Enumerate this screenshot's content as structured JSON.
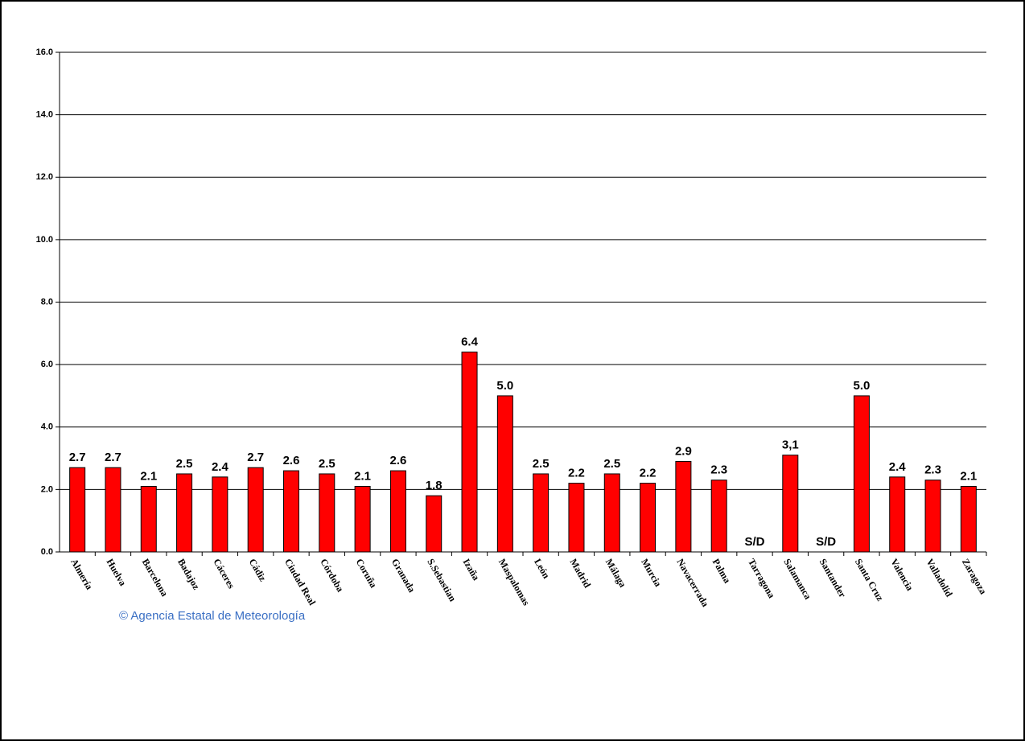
{
  "chart_data": {
    "type": "bar",
    "categories": [
      "Almería",
      "Huelva",
      "Barcelona",
      "Badajoz",
      "Cáceres",
      "Cádiz",
      "Ciudad Real",
      "Córdoba",
      "Coruña",
      "Granada",
      "S.Sebastian",
      "Izaña",
      "Maspalomas",
      "León",
      "Madrid",
      "Málaga",
      "Murcia",
      "Navacerrada",
      "Palma",
      "Tarragona",
      "Salamanca",
      "Santander",
      "Santa Cruz",
      "Valencia",
      "Valladolid",
      "Zaragoza"
    ],
    "values": [
      2.7,
      2.7,
      2.1,
      2.5,
      2.4,
      2.7,
      2.6,
      2.5,
      2.1,
      2.6,
      1.8,
      6.4,
      5.0,
      2.5,
      2.2,
      2.5,
      2.2,
      2.9,
      2.3,
      null,
      3.1,
      null,
      5.0,
      2.4,
      2.3,
      2.1
    ],
    "value_labels": [
      "2.7",
      "2.7",
      "2.1",
      "2.5",
      "2.4",
      "2.7",
      "2.6",
      "2.5",
      "2.1",
      "2.6",
      "1.8",
      "6.4",
      "5.0",
      "2.5",
      "2.2",
      "2.5",
      "2.2",
      "2.9",
      "2.3",
      "S/D",
      "3,1",
      "S/D",
      "5.0",
      "2.4",
      "2.3",
      "2.1"
    ],
    "color": "#ff0000",
    "ylim": [
      0,
      16
    ],
    "yticks": [
      {
        "value": 0,
        "label": "0.0"
      },
      {
        "value": 2,
        "label": "2.0"
      },
      {
        "value": 4,
        "label": "4.0"
      },
      {
        "value": 6,
        "label": "6.0"
      },
      {
        "value": 8,
        "label": "8.0"
      },
      {
        "value": 10,
        "label": "10.0"
      },
      {
        "value": 12,
        "label": "12.0"
      },
      {
        "value": 14,
        "label": "14.0"
      },
      {
        "value": 16,
        "label": "16.0"
      }
    ],
    "grid": true,
    "footer": "© Agencia Estatal de Meteorología"
  }
}
